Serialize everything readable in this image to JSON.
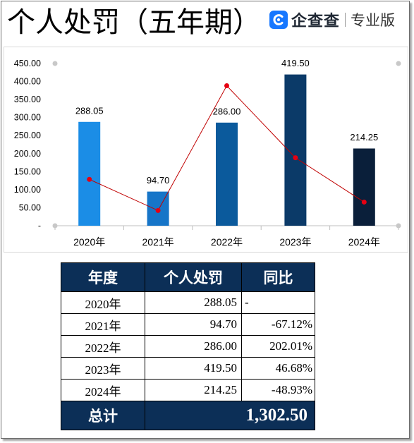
{
  "title": "个人处罚（五年期）",
  "logo": {
    "brand": "企查查",
    "edition": "专业版",
    "icon": "qichacha-logo-icon",
    "color": "#1677ff"
  },
  "chart_data": {
    "type": "bar",
    "categories": [
      "2020年",
      "2021年",
      "2022年",
      "2023年",
      "2024年"
    ],
    "series": [
      {
        "type": "bar",
        "axis": "primary",
        "values": [
          288.05,
          94.7,
          286.0,
          419.5,
          214.25
        ],
        "labels": [
          "288.05",
          "94.70",
          "286.00",
          "419.50",
          "214.25"
        ],
        "colors": [
          "#1b8de6",
          "#1675c8",
          "#0b5a9c",
          "#0b3a68",
          "#0a1f3a"
        ]
      },
      {
        "type": "line",
        "axis": "secondary",
        "values": [
          0,
          -67.12,
          202.01,
          46.68,
          -48.93
        ],
        "color": "#c00000",
        "marker_color": "#e60012"
      }
    ],
    "ylim": [
      0,
      450
    ],
    "yticks": [
      {
        "value": 0,
        "label": "-"
      },
      {
        "value": 50,
        "label": "50.00"
      },
      {
        "value": 100,
        "label": "100.00"
      },
      {
        "value": 150,
        "label": "150.00"
      },
      {
        "value": 200,
        "label": "200.00"
      },
      {
        "value": 250,
        "label": "250.00"
      },
      {
        "value": 300,
        "label": "300.00"
      },
      {
        "value": 350,
        "label": "350.00"
      },
      {
        "value": 400,
        "label": "400.00"
      },
      {
        "value": 450,
        "label": "450.00"
      }
    ],
    "y2lim": [
      -100,
      250
    ],
    "xlabel": "",
    "ylabel": "",
    "grid": false,
    "legend": "none",
    "axis_color": "#bfbfbf"
  },
  "table": {
    "headers": [
      "年度",
      "个人处罚",
      "同比"
    ],
    "rows": [
      [
        "2020年",
        "288.05",
        "-"
      ],
      [
        "2021年",
        "94.70",
        "-67.12%"
      ],
      [
        "2022年",
        "286.00",
        "202.01%"
      ],
      [
        "2023年",
        "419.50",
        "46.68%"
      ],
      [
        "2024年",
        "214.25",
        "-48.93%"
      ]
    ],
    "total": {
      "label": "总计",
      "value": "1,302.50"
    },
    "header_color": "#0c2f57"
  }
}
